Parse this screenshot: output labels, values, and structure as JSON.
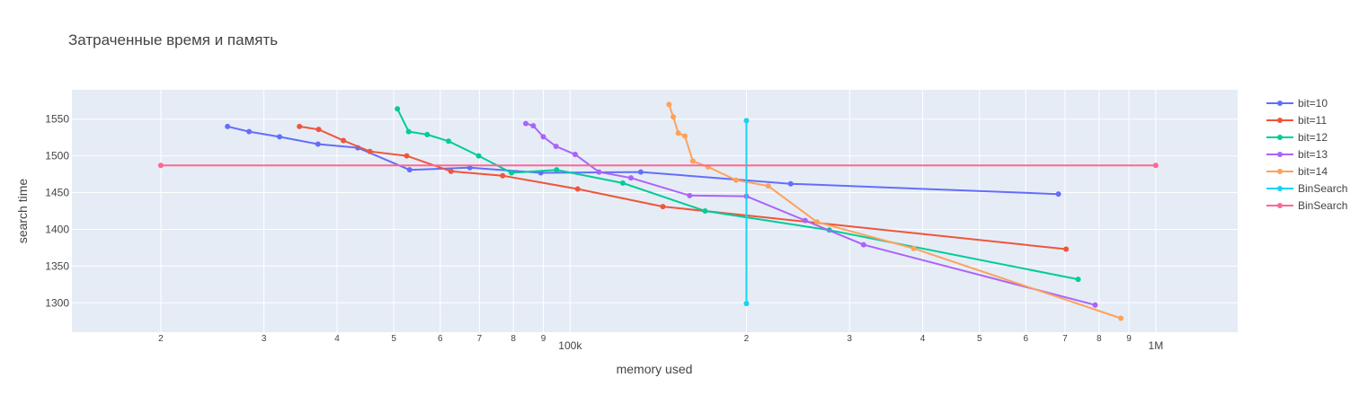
{
  "chart_data": {
    "type": "line",
    "title": "Затраченные время и память",
    "xlabel": "memory used",
    "ylabel": "search time",
    "x_scale": "log",
    "xlim": [
      14100,
      1380000
    ],
    "ylim": [
      1260,
      1590
    ],
    "x_major_ticks": [
      {
        "value": 100000,
        "label": "100k"
      },
      {
        "value": 1000000,
        "label": "1M"
      }
    ],
    "x_minor_ticks": [
      {
        "value": 20000,
        "label": "2"
      },
      {
        "value": 30000,
        "label": "3"
      },
      {
        "value": 40000,
        "label": "4"
      },
      {
        "value": 50000,
        "label": "5"
      },
      {
        "value": 60000,
        "label": "6"
      },
      {
        "value": 70000,
        "label": "7"
      },
      {
        "value": 80000,
        "label": "8"
      },
      {
        "value": 90000,
        "label": "9"
      },
      {
        "value": 200000,
        "label": "2"
      },
      {
        "value": 300000,
        "label": "3"
      },
      {
        "value": 400000,
        "label": "4"
      },
      {
        "value": 500000,
        "label": "5"
      },
      {
        "value": 600000,
        "label": "6"
      },
      {
        "value": 700000,
        "label": "7"
      },
      {
        "value": 800000,
        "label": "8"
      },
      {
        "value": 900000,
        "label": "9"
      }
    ],
    "y_ticks": [
      1300,
      1350,
      1400,
      1450,
      1500,
      1550
    ],
    "grid": true,
    "legend_position": "right",
    "series": [
      {
        "name": "bit=10",
        "color": "#636efa",
        "x": [
          26000,
          28300,
          31900,
          37100,
          43400,
          53200,
          67400,
          89100,
          132000,
          238000,
          682000
        ],
        "y": [
          1540,
          1533,
          1526,
          1516,
          1511,
          1481,
          1484,
          1477,
          1478,
          1462,
          1448
        ]
      },
      {
        "name": "bit=11",
        "color": "#ef553b",
        "x": [
          34500,
          37200,
          41000,
          45500,
          52600,
          62600,
          76700,
          103000,
          144000,
          703000
        ],
        "y": [
          1540,
          1536,
          1521,
          1506,
          1500,
          1479,
          1473,
          1455,
          1431,
          1373
        ]
      },
      {
        "name": "bit=12",
        "color": "#00cc96",
        "x": [
          50700,
          53000,
          57000,
          62000,
          69800,
          79400,
          94800,
          123000,
          170000,
          277000,
          737000
        ],
        "y": [
          1564,
          1533,
          1529,
          1520,
          1500,
          1477,
          1481,
          1463,
          1425,
          1399,
          1332
        ]
      },
      {
        "name": "bit=13",
        "color": "#ab63fa",
        "x": [
          84000,
          86500,
          90000,
          94600,
          102000,
          112000,
          127000,
          160000,
          200000,
          252000,
          317000,
          788000
        ],
        "y": [
          1544,
          1541,
          1526,
          1513,
          1502,
          1478,
          1470,
          1446,
          1445,
          1412,
          1379,
          1297
        ]
      },
      {
        "name": "bit=14",
        "color": "#ffa15a",
        "x": [
          147500,
          150000,
          153000,
          157000,
          162000,
          172000,
          192000,
          218000,
          264000,
          386000,
          872000
        ],
        "y": [
          1570,
          1553,
          1531,
          1527,
          1493,
          1485,
          1467,
          1459,
          1410,
          1374,
          1279
        ]
      },
      {
        "name": "BinSearch",
        "color": "#19d3f3",
        "x": [
          200000,
          200000
        ],
        "y": [
          1299,
          1548
        ]
      },
      {
        "name": "BinSearch",
        "color": "#ff6692",
        "x": [
          20000,
          1000000
        ],
        "y": [
          1487,
          1487
        ]
      }
    ]
  }
}
